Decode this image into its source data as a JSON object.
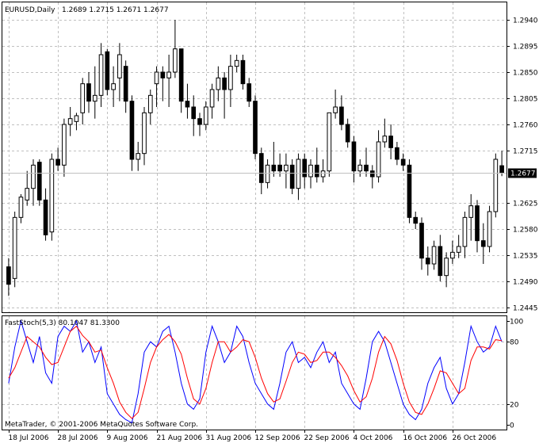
{
  "chart_header": {
    "symbol_timeframe": "EURUSD,Daily",
    "ohlc": "1.2689 1.2715 1.2671 1.2677"
  },
  "indicator_header": "FastStoch(5,3) 80.1047 81.3300",
  "copyright": "MetaTrader, © 2001-2006 MetaQuotes Software Corp.",
  "current_price_label": "1.2677",
  "colors": {
    "bull_candle": "#ffffff",
    "bear_candle": "#000000",
    "stoch_main": "#0000ff",
    "stoch_signal": "#ff0000",
    "grid": "#c0c0c0",
    "current_price_line": "#c0c0c0"
  },
  "chart_data": [
    {
      "type": "candlestick",
      "title": "EURUSD,Daily",
      "y_ticks": [
        "1.2940",
        "1.2895",
        "1.2850",
        "1.2805",
        "1.2760",
        "1.2715",
        "1.2625",
        "1.2580",
        "1.2535",
        "1.2490",
        "1.2445"
      ],
      "x_ticks": [
        "18 Jul 2006",
        "28 Jul 2006",
        "9 Aug 2006",
        "21 Aug 2006",
        "31 Aug 2006",
        "12 Sep 2006",
        "22 Sep 2006",
        "4 Oct 2006",
        "16 Oct 2006",
        "26 Oct 2006"
      ],
      "ylim": [
        1.2445,
        1.2955
      ],
      "grid": true,
      "candles": [
        {
          "o": 1.2515,
          "h": 1.253,
          "l": 1.2465,
          "c": 1.2485
        },
        {
          "o": 1.2495,
          "h": 1.261,
          "l": 1.248,
          "c": 1.26
        },
        {
          "o": 1.26,
          "h": 1.264,
          "l": 1.259,
          "c": 1.2635
        },
        {
          "o": 1.263,
          "h": 1.268,
          "l": 1.262,
          "c": 1.265
        },
        {
          "o": 1.265,
          "h": 1.27,
          "l": 1.262,
          "c": 1.269
        },
        {
          "o": 1.2695,
          "h": 1.27,
          "l": 1.262,
          "c": 1.263
        },
        {
          "o": 1.263,
          "h": 1.265,
          "l": 1.256,
          "c": 1.257
        },
        {
          "o": 1.2575,
          "h": 1.271,
          "l": 1.256,
          "c": 1.27
        },
        {
          "o": 1.27,
          "h": 1.272,
          "l": 1.268,
          "c": 1.269
        },
        {
          "o": 1.269,
          "h": 1.277,
          "l": 1.267,
          "c": 1.276
        },
        {
          "o": 1.276,
          "h": 1.279,
          "l": 1.274,
          "c": 1.277
        },
        {
          "o": 1.2765,
          "h": 1.278,
          "l": 1.275,
          "c": 1.2775
        },
        {
          "o": 1.278,
          "h": 1.284,
          "l": 1.276,
          "c": 1.283
        },
        {
          "o": 1.283,
          "h": 1.285,
          "l": 1.278,
          "c": 1.28
        },
        {
          "o": 1.28,
          "h": 1.286,
          "l": 1.277,
          "c": 1.281
        },
        {
          "o": 1.281,
          "h": 1.29,
          "l": 1.279,
          "c": 1.288
        },
        {
          "o": 1.2885,
          "h": 1.289,
          "l": 1.281,
          "c": 1.282
        },
        {
          "o": 1.282,
          "h": 1.286,
          "l": 1.279,
          "c": 1.283
        },
        {
          "o": 1.284,
          "h": 1.29,
          "l": 1.28,
          "c": 1.288
        },
        {
          "o": 1.286,
          "h": 1.287,
          "l": 1.278,
          "c": 1.28
        },
        {
          "o": 1.28,
          "h": 1.281,
          "l": 1.268,
          "c": 1.27
        },
        {
          "o": 1.27,
          "h": 1.273,
          "l": 1.268,
          "c": 1.271
        },
        {
          "o": 1.271,
          "h": 1.279,
          "l": 1.269,
          "c": 1.278
        },
        {
          "o": 1.278,
          "h": 1.282,
          "l": 1.276,
          "c": 1.281
        },
        {
          "o": 1.283,
          "h": 1.286,
          "l": 1.279,
          "c": 1.285
        },
        {
          "o": 1.285,
          "h": 1.286,
          "l": 1.28,
          "c": 1.284
        },
        {
          "o": 1.284,
          "h": 1.288,
          "l": 1.279,
          "c": 1.285
        },
        {
          "o": 1.285,
          "h": 1.294,
          "l": 1.284,
          "c": 1.289
        },
        {
          "o": 1.289,
          "h": 1.289,
          "l": 1.278,
          "c": 1.28
        },
        {
          "o": 1.28,
          "h": 1.283,
          "l": 1.277,
          "c": 1.279
        },
        {
          "o": 1.279,
          "h": 1.281,
          "l": 1.274,
          "c": 1.277
        },
        {
          "o": 1.277,
          "h": 1.278,
          "l": 1.274,
          "c": 1.276
        },
        {
          "o": 1.276,
          "h": 1.28,
          "l": 1.275,
          "c": 1.279
        },
        {
          "o": 1.279,
          "h": 1.283,
          "l": 1.277,
          "c": 1.282
        },
        {
          "o": 1.282,
          "h": 1.286,
          "l": 1.28,
          "c": 1.284
        },
        {
          "o": 1.284,
          "h": 1.285,
          "l": 1.277,
          "c": 1.282
        },
        {
          "o": 1.282,
          "h": 1.288,
          "l": 1.279,
          "c": 1.286
        },
        {
          "o": 1.286,
          "h": 1.288,
          "l": 1.285,
          "c": 1.287
        },
        {
          "o": 1.287,
          "h": 1.288,
          "l": 1.282,
          "c": 1.283
        },
        {
          "o": 1.283,
          "h": 1.284,
          "l": 1.279,
          "c": 1.28
        },
        {
          "o": 1.28,
          "h": 1.281,
          "l": 1.27,
          "c": 1.271
        },
        {
          "o": 1.271,
          "h": 1.272,
          "l": 1.264,
          "c": 1.266
        },
        {
          "o": 1.266,
          "h": 1.27,
          "l": 1.265,
          "c": 1.269
        },
        {
          "o": 1.269,
          "h": 1.273,
          "l": 1.267,
          "c": 1.268
        },
        {
          "o": 1.269,
          "h": 1.271,
          "l": 1.267,
          "c": 1.268
        },
        {
          "o": 1.268,
          "h": 1.271,
          "l": 1.265,
          "c": 1.269
        },
        {
          "o": 1.269,
          "h": 1.27,
          "l": 1.264,
          "c": 1.265
        },
        {
          "o": 1.265,
          "h": 1.271,
          "l": 1.263,
          "c": 1.27
        },
        {
          "o": 1.27,
          "h": 1.271,
          "l": 1.265,
          "c": 1.267
        },
        {
          "o": 1.267,
          "h": 1.27,
          "l": 1.265,
          "c": 1.269
        },
        {
          "o": 1.269,
          "h": 1.272,
          "l": 1.266,
          "c": 1.267
        },
        {
          "o": 1.267,
          "h": 1.27,
          "l": 1.266,
          "c": 1.268
        },
        {
          "o": 1.268,
          "h": 1.278,
          "l": 1.267,
          "c": 1.278
        },
        {
          "o": 1.278,
          "h": 1.282,
          "l": 1.277,
          "c": 1.279
        },
        {
          "o": 1.279,
          "h": 1.281,
          "l": 1.275,
          "c": 1.276
        },
        {
          "o": 1.276,
          "h": 1.277,
          "l": 1.272,
          "c": 1.273
        },
        {
          "o": 1.273,
          "h": 1.274,
          "l": 1.266,
          "c": 1.268
        },
        {
          "o": 1.268,
          "h": 1.27,
          "l": 1.267,
          "c": 1.269
        },
        {
          "o": 1.269,
          "h": 1.272,
          "l": 1.267,
          "c": 1.268
        },
        {
          "o": 1.268,
          "h": 1.269,
          "l": 1.265,
          "c": 1.267
        },
        {
          "o": 1.267,
          "h": 1.275,
          "l": 1.266,
          "c": 1.273
        },
        {
          "o": 1.273,
          "h": 1.277,
          "l": 1.272,
          "c": 1.274
        },
        {
          "o": 1.274,
          "h": 1.276,
          "l": 1.27,
          "c": 1.272
        },
        {
          "o": 1.272,
          "h": 1.273,
          "l": 1.269,
          "c": 1.27
        },
        {
          "o": 1.27,
          "h": 1.271,
          "l": 1.268,
          "c": 1.269
        },
        {
          "o": 1.269,
          "h": 1.27,
          "l": 1.259,
          "c": 1.26
        },
        {
          "o": 1.26,
          "h": 1.261,
          "l": 1.258,
          "c": 1.259
        },
        {
          "o": 1.259,
          "h": 1.26,
          "l": 1.251,
          "c": 1.253
        },
        {
          "o": 1.253,
          "h": 1.255,
          "l": 1.25,
          "c": 1.252
        },
        {
          "o": 1.252,
          "h": 1.256,
          "l": 1.251,
          "c": 1.255
        },
        {
          "o": 1.255,
          "h": 1.257,
          "l": 1.249,
          "c": 1.25
        },
        {
          "o": 1.25,
          "h": 1.254,
          "l": 1.248,
          "c": 1.253
        },
        {
          "o": 1.253,
          "h": 1.256,
          "l": 1.252,
          "c": 1.254
        },
        {
          "o": 1.254,
          "h": 1.257,
          "l": 1.253,
          "c": 1.255
        },
        {
          "o": 1.255,
          "h": 1.261,
          "l": 1.253,
          "c": 1.26
        },
        {
          "o": 1.26,
          "h": 1.264,
          "l": 1.256,
          "c": 1.262
        },
        {
          "o": 1.262,
          "h": 1.263,
          "l": 1.254,
          "c": 1.256
        },
        {
          "o": 1.256,
          "h": 1.259,
          "l": 1.252,
          "c": 1.255
        },
        {
          "o": 1.255,
          "h": 1.262,
          "l": 1.254,
          "c": 1.261
        },
        {
          "o": 1.261,
          "h": 1.271,
          "l": 1.26,
          "c": 1.27
        },
        {
          "o": 1.2689,
          "h": 1.2715,
          "l": 1.2671,
          "c": 1.2677
        }
      ],
      "current_price": 1.2677
    },
    {
      "type": "line",
      "title": "FastStoch(5,3) 80.1047 81.3300",
      "ylim": [
        0,
        100
      ],
      "y_ticks": [
        "100",
        "80",
        "20",
        "0"
      ],
      "series": [
        {
          "name": "FastStoch main",
          "values": [
            40,
            75,
            100,
            80,
            60,
            85,
            50,
            40,
            85,
            95,
            90,
            100,
            70,
            80,
            60,
            75,
            30,
            20,
            10,
            5,
            2,
            30,
            70,
            80,
            75,
            90,
            95,
            70,
            40,
            20,
            15,
            25,
            70,
            95,
            80,
            60,
            70,
            95,
            85,
            60,
            40,
            30,
            20,
            15,
            40,
            70,
            80,
            60,
            65,
            55,
            70,
            80,
            60,
            70,
            40,
            30,
            20,
            15,
            45,
            80,
            90,
            80,
            60,
            40,
            20,
            10,
            5,
            15,
            40,
            55,
            65,
            35,
            20,
            30,
            60,
            95,
            80,
            70,
            75,
            95,
            80
          ]
        },
        {
          "name": "FastStoch signal",
          "values": [
            45,
            55,
            70,
            85,
            80,
            75,
            65,
            58,
            60,
            75,
            90,
            95,
            86,
            80,
            70,
            72,
            55,
            40,
            22,
            12,
            6,
            12,
            35,
            60,
            75,
            82,
            87,
            80,
            68,
            45,
            25,
            20,
            35,
            60,
            80,
            80,
            70,
            75,
            82,
            80,
            65,
            45,
            30,
            22,
            25,
            42,
            60,
            70,
            68,
            60,
            62,
            70,
            70,
            65,
            57,
            47,
            33,
            22,
            27,
            45,
            70,
            85,
            78,
            62,
            40,
            22,
            12,
            10,
            20,
            35,
            52,
            50,
            40,
            30,
            35,
            62,
            75,
            75,
            73,
            82,
            81
          ]
        }
      ]
    }
  ]
}
